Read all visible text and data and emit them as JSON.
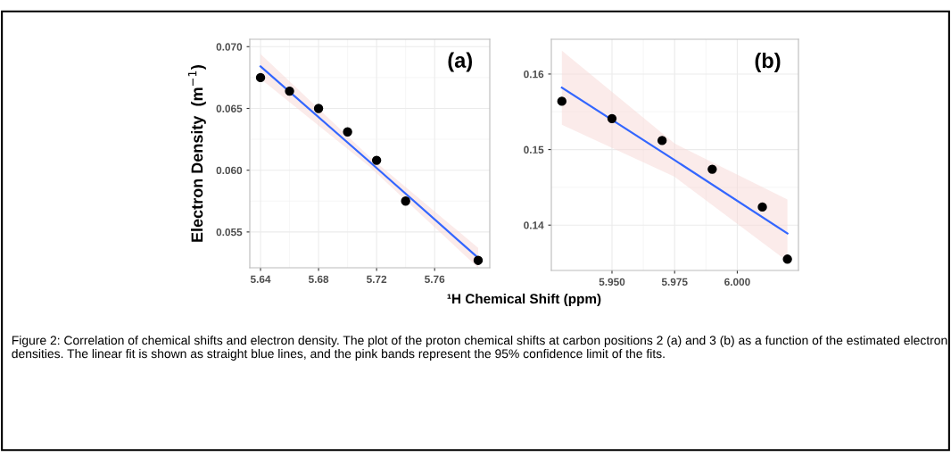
{
  "chart_data": [
    {
      "type": "scatter",
      "ylabel": "Electron Density  (m$^{−1}$)",
      "xlabel": "¹H Chemical Shift (ppm)",
      "annotations": [
        "(a)"
      ],
      "xlim": [
        5.6326,
        5.798
      ],
      "ylim": [
        0.0521,
        0.0706
      ],
      "xticks": [
        {
          "value": 5.64,
          "label": "5.64"
        },
        {
          "value": 5.68,
          "label": "5.68"
        },
        {
          "value": 5.72,
          "label": "5.72"
        },
        {
          "value": 5.76,
          "label": "5.76"
        }
      ],
      "yticks": [
        {
          "value": 0.055,
          "label": "0.055"
        },
        {
          "value": 0.06,
          "label": "0.060"
        },
        {
          "value": 0.065,
          "label": "0.065"
        },
        {
          "value": 0.07,
          "label": "0.070"
        }
      ],
      "grid": true,
      "series": [
        {
          "marker": "circle",
          "color": "#000000",
          "x": [
            5.64,
            5.66,
            5.68,
            5.7,
            5.72,
            5.74,
            5.79
          ],
          "values": [
            0.0675,
            0.0664,
            0.065,
            0.0631,
            0.0608,
            0.0575,
            0.0527
          ]
        },
        {
          "type": "line",
          "color": "#3366ff",
          "x": [
            5.64,
            5.715,
            5.79
          ],
          "values": [
            0.0684,
            0.0607,
            0.0529
          ],
          "lower": [
            0.0674,
            0.0603,
            0.0521
          ],
          "upper": [
            0.0694,
            0.0611,
            0.0537
          ]
        }
      ]
    },
    {
      "type": "scatter",
      "annotations": [
        "(b)",
        "Figure 2: Correlation of chemical shifts and electron density. The plot of the proton chemical shifts at carbon positions 2 (a) and 3 (b) as a function of the estimated electron densities. The linear fit is shown as straight blue lines, and the pink bands represent the 95% confidence limit of the fits."
      ],
      "xlim": [
        5.9258,
        6.0244
      ],
      "ylim": [
        0.134,
        0.1646
      ],
      "xticks": [
        {
          "value": 5.95,
          "label": "5.950"
        },
        {
          "value": 5.975,
          "label": "5.975"
        },
        {
          "value": 6.0,
          "label": "6.000"
        }
      ],
      "yticks": [
        {
          "value": 0.14,
          "label": "0.14"
        },
        {
          "value": 0.15,
          "label": "0.15"
        },
        {
          "value": 0.16,
          "label": "0.16"
        }
      ],
      "grid": true,
      "series": [
        {
          "marker": "circle",
          "color": "#000000",
          "x": [
            5.93,
            5.95,
            5.97,
            5.99,
            6.01,
            6.02
          ],
          "values": [
            0.1564,
            0.1541,
            0.1512,
            0.1474,
            0.1424,
            0.1355
          ]
        },
        {
          "type": "line",
          "color": "#3366ff",
          "x": [
            5.93,
            5.975,
            6.02
          ],
          "values": [
            0.1582,
            0.1486,
            0.1389
          ],
          "lower": [
            0.1533,
            0.1464,
            0.1352
          ],
          "upper": [
            0.1631,
            0.1508,
            0.1434
          ]
        }
      ]
    }
  ]
}
